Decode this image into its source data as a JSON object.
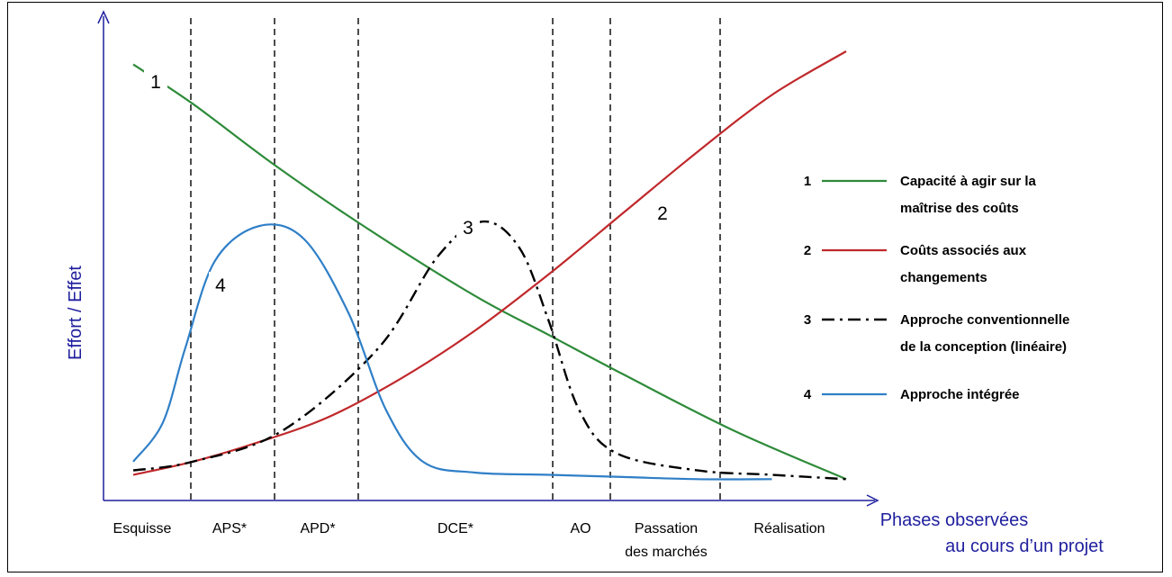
{
  "chart_data": {
    "type": "line",
    "ylabel": "Effort / Effet",
    "xlabel": [
      "Phases observées",
      "au cours d’un projet"
    ],
    "phases": [
      {
        "label": [
          "Esquisse"
        ]
      },
      {
        "label": [
          "APS*"
        ]
      },
      {
        "label": [
          "APD*"
        ]
      },
      {
        "label": [
          "DCE*"
        ]
      },
      {
        "label": [
          "AO"
        ]
      },
      {
        "label": [
          "Passation",
          "des marchés"
        ]
      },
      {
        "label": [
          "Réalisation"
        ]
      }
    ],
    "legend_position": "right",
    "series": [
      {
        "id": "1",
        "name": [
          "Capacité à agir sur la",
          "maîtrise des coûts"
        ],
        "color": "#2e8b3a",
        "style": "solid",
        "points": [
          [
            0.04,
            0.97
          ],
          [
            0.12,
            0.88
          ],
          [
            0.23,
            0.74
          ],
          [
            0.35,
            0.6
          ],
          [
            0.5,
            0.44
          ],
          [
            0.6,
            0.35
          ],
          [
            0.7,
            0.26
          ],
          [
            0.85,
            0.13
          ],
          [
            1.0,
            0.02
          ]
        ]
      },
      {
        "id": "2",
        "name": [
          "Coûts associés aux",
          "changements"
        ],
        "color": "#c0282b",
        "style": "solid",
        "points": [
          [
            0.04,
            0.03
          ],
          [
            0.12,
            0.06
          ],
          [
            0.2,
            0.1
          ],
          [
            0.3,
            0.16
          ],
          [
            0.4,
            0.25
          ],
          [
            0.5,
            0.36
          ],
          [
            0.6,
            0.49
          ],
          [
            0.7,
            0.63
          ],
          [
            0.8,
            0.77
          ],
          [
            0.9,
            0.9
          ],
          [
            1.0,
            1.0
          ]
        ]
      },
      {
        "id": "3",
        "name": [
          "Approche conventionnelle",
          "de la conception (linéaire)"
        ],
        "color": "#000000",
        "style": "dashdot",
        "points": [
          [
            0.04,
            0.04
          ],
          [
            0.12,
            0.06
          ],
          [
            0.24,
            0.13
          ],
          [
            0.37,
            0.32
          ],
          [
            0.45,
            0.53
          ],
          [
            0.51,
            0.61
          ],
          [
            0.56,
            0.55
          ],
          [
            0.6,
            0.38
          ],
          [
            0.64,
            0.18
          ],
          [
            0.69,
            0.08
          ],
          [
            0.8,
            0.04
          ],
          [
            0.9,
            0.03
          ],
          [
            1.0,
            0.02
          ]
        ]
      },
      {
        "id": "4",
        "name": [
          "Approche intégrée"
        ],
        "color": "#2f7fc7",
        "style": "solid",
        "points": [
          [
            0.04,
            0.06
          ],
          [
            0.08,
            0.15
          ],
          [
            0.11,
            0.32
          ],
          [
            0.15,
            0.52
          ],
          [
            0.21,
            0.6
          ],
          [
            0.27,
            0.57
          ],
          [
            0.33,
            0.4
          ],
          [
            0.38,
            0.18
          ],
          [
            0.43,
            0.06
          ],
          [
            0.5,
            0.035
          ],
          [
            0.6,
            0.03
          ],
          [
            0.7,
            0.025
          ],
          [
            0.8,
            0.02
          ],
          [
            0.9,
            0.02
          ]
        ]
      }
    ]
  }
}
